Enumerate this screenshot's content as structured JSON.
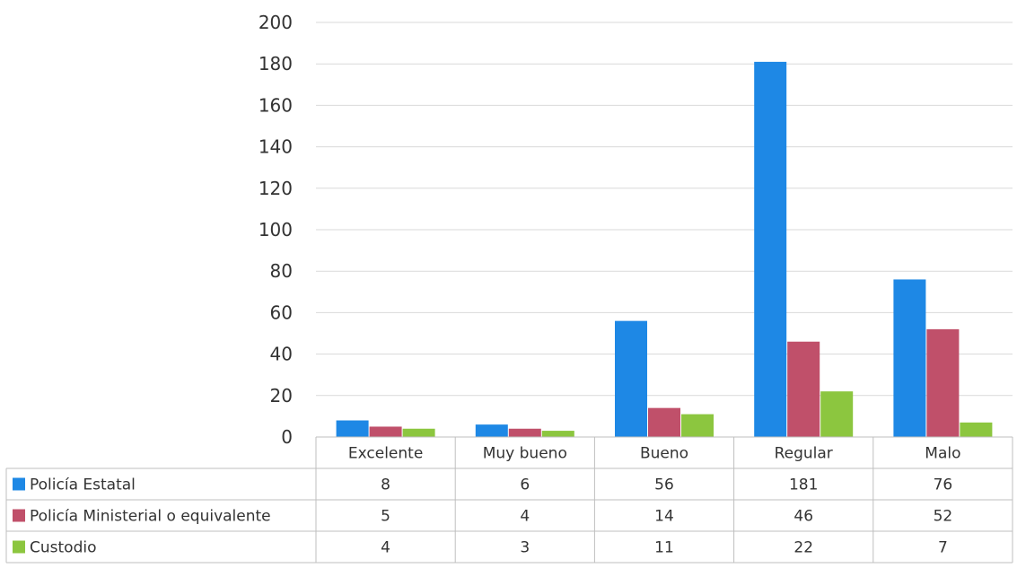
{
  "chart_data": {
    "type": "bar",
    "title": "",
    "xlabel": "",
    "ylabel": "",
    "categories": [
      "Excelente",
      "Muy bueno",
      "Bueno",
      "Regular",
      "Malo"
    ],
    "ylim": [
      0,
      200
    ],
    "yticks": [
      0,
      20,
      40,
      60,
      80,
      100,
      120,
      140,
      160,
      180,
      200
    ],
    "grid": true,
    "legend": "data-table-left",
    "series": [
      {
        "name": "Policía Estatal",
        "color": "#1E88E5",
        "values": [
          8,
          6,
          56,
          181,
          76
        ]
      },
      {
        "name": "Policía Ministerial o equivalente",
        "color": "#C0506A",
        "values": [
          5,
          4,
          14,
          46,
          52
        ]
      },
      {
        "name": "Custodio",
        "color": "#8CC63F",
        "values": [
          4,
          3,
          11,
          22,
          7
        ]
      }
    ]
  }
}
